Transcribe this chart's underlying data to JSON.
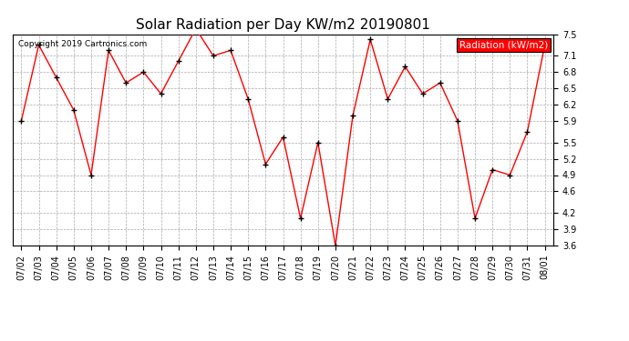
{
  "title": "Solar Radiation per Day KW/m2 20190801",
  "copyright": "Copyright 2019 Cartronics.com",
  "legend_label": "Radiation (kW/m2)",
  "dates": [
    "07/02",
    "07/03",
    "07/04",
    "07/05",
    "07/06",
    "07/07",
    "07/08",
    "07/09",
    "07/10",
    "07/11",
    "07/12",
    "07/13",
    "07/14",
    "07/15",
    "07/16",
    "07/17",
    "07/18",
    "07/19",
    "07/20",
    "07/21",
    "07/22",
    "07/23",
    "07/24",
    "07/25",
    "07/26",
    "07/27",
    "07/28",
    "07/29",
    "07/30",
    "07/31",
    "08/01"
  ],
  "values": [
    5.9,
    7.3,
    6.7,
    6.1,
    4.9,
    7.2,
    6.6,
    6.8,
    6.4,
    7.0,
    7.6,
    7.1,
    7.2,
    6.3,
    5.1,
    5.6,
    4.1,
    5.5,
    3.6,
    6.0,
    7.4,
    6.3,
    6.9,
    6.4,
    6.6,
    5.9,
    4.1,
    5.0,
    4.9,
    5.7,
    7.3
  ],
  "ylim": [
    3.6,
    7.5
  ],
  "yticks": [
    3.6,
    3.9,
    4.2,
    4.6,
    4.9,
    5.2,
    5.5,
    5.9,
    6.2,
    6.5,
    6.8,
    7.1,
    7.5
  ],
  "line_color": "red",
  "marker_color": "black",
  "bg_color": "#ffffff",
  "plot_bg_color": "#ffffff",
  "grid_color": "#aaaaaa",
  "title_fontsize": 11,
  "tick_fontsize": 7,
  "legend_bg": "red",
  "legend_text_color": "white"
}
